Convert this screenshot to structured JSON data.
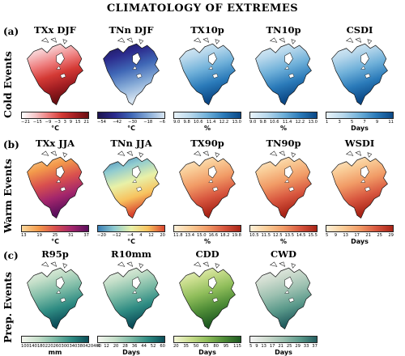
{
  "title": "CLIMATOLOGY OF EXTREMES",
  "rows": [
    {
      "tag": "(a)",
      "side": "Cold Events",
      "panels": [
        {
          "title": "TXx DJF",
          "unit": "°C",
          "ticks": [
            "−21",
            "−15",
            "−9",
            "−3",
            "3",
            "9",
            "15",
            "21"
          ],
          "colors": [
            "#ffffff",
            "#f6c7c9",
            "#ee7d7d",
            "#d43a35",
            "#a31e22",
            "#6a0f12"
          ]
        },
        {
          "title": "TNn DJF",
          "unit": "°C",
          "ticks": [
            "−54",
            "−42",
            "−30",
            "−18",
            "−6"
          ],
          "colors": [
            "#1c144f",
            "#2b2a8c",
            "#3f67b6",
            "#84a9d6",
            "#d6e4f1"
          ]
        },
        {
          "title": "TX10p",
          "unit": "%",
          "ticks": [
            "9.0",
            "9.8",
            "10.6",
            "11.4",
            "12.2",
            "13.0"
          ],
          "colors": [
            "#e9f3f9",
            "#b8d8ec",
            "#6fb0d9",
            "#2a7ab9",
            "#0b4886"
          ]
        },
        {
          "title": "TN10p",
          "unit": "%",
          "ticks": [
            "9.0",
            "9.8",
            "10.6",
            "11.4",
            "12.2",
            "13.0"
          ],
          "colors": [
            "#e9f3f9",
            "#b8d8ec",
            "#6fb0d9",
            "#2a7ab9",
            "#0b4886"
          ]
        },
        {
          "title": "CSDI",
          "unit": "Days",
          "ticks": [
            "1",
            "3",
            "5",
            "7",
            "9",
            "11"
          ],
          "colors": [
            "#e9f3f9",
            "#b8d8ec",
            "#6fb0d9",
            "#2a7ab9",
            "#0b4886"
          ]
        }
      ]
    },
    {
      "tag": "(b)",
      "side": "Warm Events",
      "panels": [
        {
          "title": "TXx JJA",
          "unit": "°C",
          "ticks": [
            "13",
            "19",
            "25",
            "31",
            "37"
          ],
          "colors": [
            "#fbd89b",
            "#f39a4b",
            "#d9504e",
            "#a3266c",
            "#5b0f5c"
          ]
        },
        {
          "title": "TNn JJA",
          "unit": "°C",
          "ticks": [
            "−20",
            "−12",
            "−4",
            "4",
            "12",
            "20"
          ],
          "colors": [
            "#3a7fb5",
            "#8fcbd0",
            "#e8f1a8",
            "#f7c25e",
            "#d9452f"
          ]
        },
        {
          "title": "TX90p",
          "unit": "%",
          "ticks": [
            "11.8",
            "13.4",
            "15.0",
            "16.6",
            "18.2",
            "19.8"
          ],
          "colors": [
            "#fdf0d8",
            "#f9cc97",
            "#f19b66",
            "#d8573f",
            "#a92417"
          ]
        },
        {
          "title": "TN90p",
          "unit": "%",
          "ticks": [
            "10.5",
            "11.5",
            "12.5",
            "13.5",
            "14.5",
            "15.5"
          ],
          "colors": [
            "#fdf0d8",
            "#f9cc97",
            "#f19b66",
            "#d8573f",
            "#a92417"
          ]
        },
        {
          "title": "WSDI",
          "unit": "Days",
          "ticks": [
            "5",
            "9",
            "13",
            "17",
            "21",
            "25",
            "29"
          ],
          "colors": [
            "#fdf0d8",
            "#f9cc97",
            "#f19b66",
            "#d8573f",
            "#a92417"
          ]
        }
      ]
    },
    {
      "tag": "(c)",
      "side": "Prep. Events",
      "panels": [
        {
          "title": "R95p",
          "unit": "mm",
          "ticks": [
            "100",
            "140",
            "180",
            "220",
            "260",
            "300",
            "340",
            "380",
            "420",
            "460"
          ],
          "colors": [
            "#f4f6ef",
            "#c5dfc9",
            "#7dbba6",
            "#2f8c83",
            "#0c4e59"
          ]
        },
        {
          "title": "R10mm",
          "unit": "Days",
          "ticks": [
            "4",
            "12",
            "20",
            "28",
            "36",
            "44",
            "52",
            "60"
          ],
          "colors": [
            "#f4f6ef",
            "#c5dfc9",
            "#7dbba6",
            "#2f8c83",
            "#0c4e59"
          ]
        },
        {
          "title": "CDD",
          "unit": "Days",
          "ticks": [
            "20",
            "35",
            "50",
            "65",
            "80",
            "95",
            "115"
          ],
          "colors": [
            "#f3f6d6",
            "#c9dd8d",
            "#8fbd5a",
            "#4f8d37",
            "#1f5a22"
          ]
        },
        {
          "title": "CWD",
          "unit": "Days",
          "ticks": [
            "5",
            "9",
            "13",
            "17",
            "21",
            "25",
            "29",
            "33",
            "37"
          ],
          "colors": [
            "#f3f3f3",
            "#cfdccf",
            "#9cc0b0",
            "#5b9a8b",
            "#245e60"
          ]
        }
      ]
    }
  ]
}
